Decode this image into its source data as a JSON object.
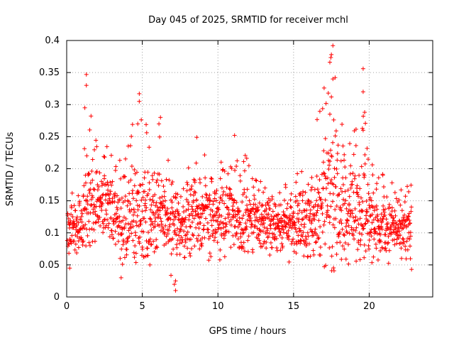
{
  "chart_data": {
    "type": "scatter",
    "title": "Day 045 of 2025, SRMTID for receiver mchl",
    "xlabel": "GPS time / hours",
    "ylabel": "SRMTID / TECUs",
    "xlim": [
      0,
      24.2
    ],
    "ylim": [
      0,
      0.4
    ],
    "xticks": [
      0,
      5,
      10,
      15,
      20
    ],
    "xtick_labels": [
      "0",
      "5",
      "10",
      "15",
      "20"
    ],
    "yticks": [
      0,
      0.05,
      0.1,
      0.15,
      0.2,
      0.25,
      0.3,
      0.35,
      0.4
    ],
    "ytick_labels": [
      "0",
      "0.05",
      "0.1",
      "0.15",
      "0.2",
      "0.25",
      "0.3",
      "0.35",
      "0.4"
    ],
    "grid": true,
    "marker": "+",
    "color": "#ff0000",
    "series": [
      {
        "name": "SRMTID",
        "x_range": [
          0.05,
          22.8
        ],
        "envelope": [
          {
            "x": 0,
            "low": 0.06,
            "typ": 0.1,
            "high": 0.16
          },
          {
            "x": 1,
            "low": 0.06,
            "typ": 0.11,
            "high": 0.18
          },
          {
            "x": 1.3,
            "low": 0.08,
            "typ": 0.15,
            "high": 0.345
          },
          {
            "x": 2,
            "low": 0.08,
            "typ": 0.15,
            "high": 0.24
          },
          {
            "x": 3,
            "low": 0.08,
            "typ": 0.14,
            "high": 0.27
          },
          {
            "x": 3.8,
            "low": 0.03,
            "typ": 0.11,
            "high": 0.22
          },
          {
            "x": 4.8,
            "low": 0.06,
            "typ": 0.13,
            "high": 0.315
          },
          {
            "x": 6,
            "low": 0.07,
            "typ": 0.14,
            "high": 0.28
          },
          {
            "x": 7.2,
            "low": 0.01,
            "typ": 0.1,
            "high": 0.17
          },
          {
            "x": 8.5,
            "low": 0.06,
            "typ": 0.13,
            "high": 0.25
          },
          {
            "x": 10,
            "low": 0.05,
            "typ": 0.12,
            "high": 0.2
          },
          {
            "x": 11,
            "low": 0.07,
            "typ": 0.13,
            "high": 0.25
          },
          {
            "x": 13,
            "low": 0.06,
            "typ": 0.12,
            "high": 0.19
          },
          {
            "x": 14,
            "low": 0.05,
            "typ": 0.11,
            "high": 0.17
          },
          {
            "x": 16,
            "low": 0.06,
            "typ": 0.12,
            "high": 0.22
          },
          {
            "x": 17.6,
            "low": 0.04,
            "typ": 0.15,
            "high": 0.39
          },
          {
            "x": 18.5,
            "low": 0.05,
            "typ": 0.12,
            "high": 0.24
          },
          {
            "x": 19.6,
            "low": 0.06,
            "typ": 0.16,
            "high": 0.355
          },
          {
            "x": 20.5,
            "low": 0.05,
            "typ": 0.11,
            "high": 0.2
          },
          {
            "x": 22,
            "low": 0.05,
            "typ": 0.1,
            "high": 0.17
          },
          {
            "x": 22.8,
            "low": 0.04,
            "typ": 0.11,
            "high": 0.175
          }
        ],
        "notable_points": [
          {
            "x": 1.3,
            "y": 0.347
          },
          {
            "x": 1.3,
            "y": 0.33
          },
          {
            "x": 1.2,
            "y": 0.295
          },
          {
            "x": 4.8,
            "y": 0.317
          },
          {
            "x": 4.8,
            "y": 0.305
          },
          {
            "x": 4.7,
            "y": 0.27
          },
          {
            "x": 6.2,
            "y": 0.28
          },
          {
            "x": 6.1,
            "y": 0.27
          },
          {
            "x": 3.6,
            "y": 0.03
          },
          {
            "x": 7.2,
            "y": 0.01
          },
          {
            "x": 7.2,
            "y": 0.025
          },
          {
            "x": 11.1,
            "y": 0.252
          },
          {
            "x": 8.6,
            "y": 0.249
          },
          {
            "x": 17.6,
            "y": 0.392
          },
          {
            "x": 17.5,
            "y": 0.378
          },
          {
            "x": 17.4,
            "y": 0.366
          },
          {
            "x": 17.6,
            "y": 0.34
          },
          {
            "x": 17.5,
            "y": 0.312
          },
          {
            "x": 17.4,
            "y": 0.285
          },
          {
            "x": 19.6,
            "y": 0.356
          },
          {
            "x": 19.6,
            "y": 0.32
          },
          {
            "x": 19.7,
            "y": 0.288
          },
          {
            "x": 19.6,
            "y": 0.26
          },
          {
            "x": 0.2,
            "y": 0.045
          },
          {
            "x": 22.8,
            "y": 0.043
          },
          {
            "x": 5.5,
            "y": 0.05
          },
          {
            "x": 20.9,
            "y": 0.19
          }
        ]
      }
    ]
  }
}
